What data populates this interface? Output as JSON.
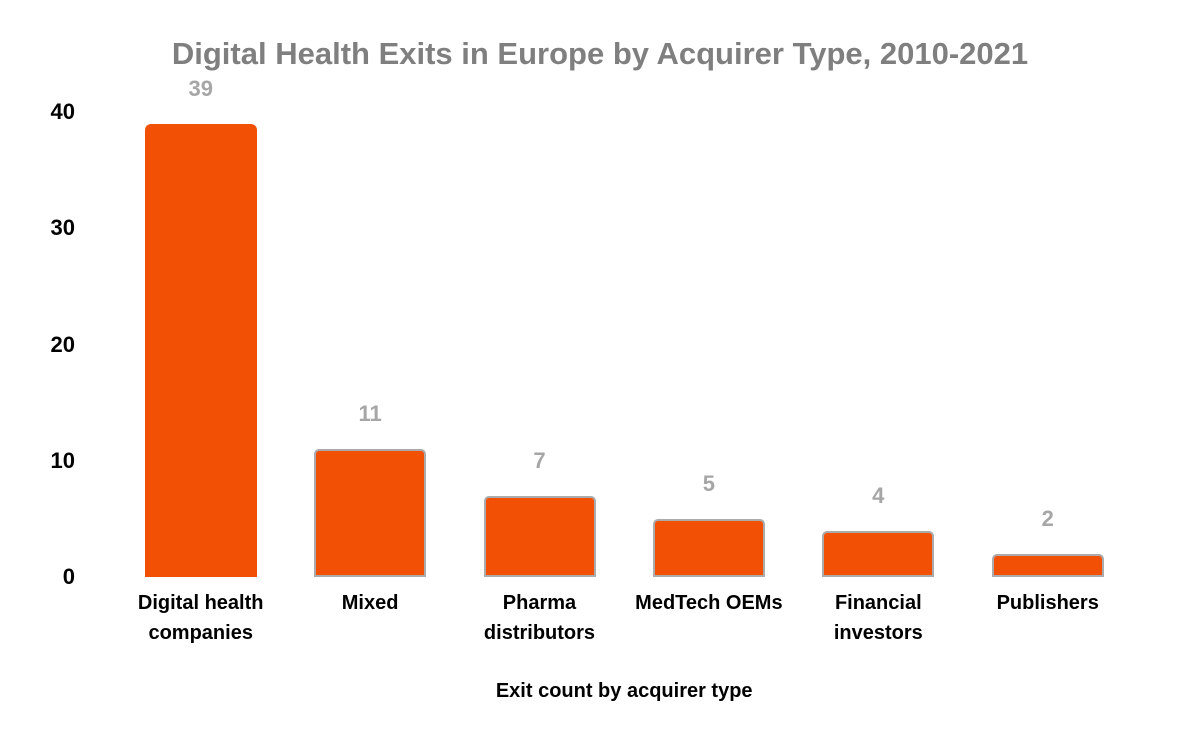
{
  "chart_data": {
    "type": "bar",
    "title": "Digital Health Exits in Europe by Acquirer Type, 2010-2021",
    "categories": [
      "Digital health companies",
      "Mixed",
      "Pharma distributors",
      "MedTech OEMs",
      "Financial investors",
      "Publishers"
    ],
    "values": [
      39,
      11,
      7,
      5,
      4,
      2
    ],
    "data_labels": [
      "39",
      "11",
      "7",
      "5",
      "4",
      "2"
    ],
    "xlabel": "Exit count by acquirer type",
    "ylabel": "",
    "ylim": [
      0,
      40
    ],
    "yticks": [
      0,
      10,
      20,
      30,
      40
    ],
    "grid": false,
    "legend": false,
    "colors": {
      "bar_fill": "#F25005",
      "bar_border": "#ABABAB",
      "data_label": "#A6A6A6",
      "title": "#7F7F7F",
      "axis_text": "#000000",
      "background": "#FFFFFF"
    },
    "style_notes": {
      "first_bar_border": false,
      "other_bars_border": true
    }
  }
}
